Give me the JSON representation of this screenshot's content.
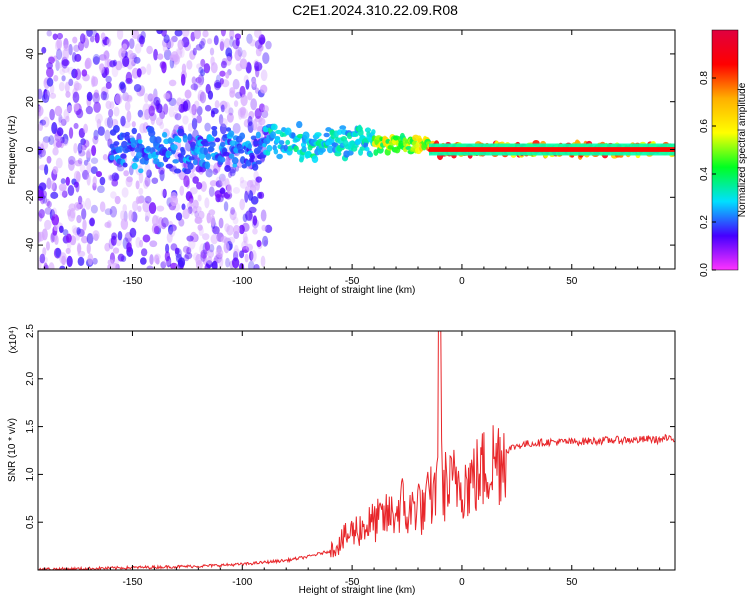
{
  "title": "C2E1.2024.310.22.09.R08",
  "colors": {
    "axis": "#000000",
    "snr_line": "#e8262a",
    "colorbar": [
      "#ff33ff",
      "#4400ff",
      "#00e0ff",
      "#00ff22",
      "#ffff00",
      "#ffb000",
      "#ff0000",
      "#e00040"
    ]
  },
  "chart_data": [
    {
      "type": "heatmap",
      "title": "C2E1.2024.310.22.09.R08",
      "xlabel": "Height of straight line (km)",
      "ylabel": "Frequency (Hz)",
      "xlim": [
        -193,
        97
      ],
      "ylim": [
        -50,
        50
      ],
      "xticks": [
        -150,
        -100,
        -50,
        0,
        50
      ],
      "yticks": [
        -40,
        -20,
        0,
        20,
        40
      ],
      "xtick_labels": [
        "-150",
        "-100",
        "-50",
        "0",
        "50"
      ],
      "ytick_labels": [
        "-40",
        "-20",
        "0",
        "20",
        "40"
      ],
      "colorbar": {
        "label": "Normalized spectral amplitude",
        "range": [
          0,
          1
        ],
        "ticks": [
          0.0,
          0.2,
          0.4,
          0.6,
          0.8
        ],
        "tick_labels": [
          "0.0",
          "0.2",
          "0.4",
          "0.6",
          "0.8"
        ]
      },
      "regions": [
        {
          "x_range": [
            -193,
            -88
          ],
          "description": "diffuse low-amplitude noise across all frequencies",
          "amplitude": 0.1
        },
        {
          "x_range": [
            -160,
            -90
          ],
          "freq_center": 0,
          "freq_halfwidth": 10,
          "amplitude": 0.25
        },
        {
          "x_range": [
            -90,
            -40
          ],
          "freq_center": 3,
          "freq_halfwidth": 8,
          "amplitude": 0.35
        },
        {
          "x_range": [
            -40,
            -15
          ],
          "freq_center": 2,
          "freq_halfwidth": 4,
          "amplitude": 0.6
        },
        {
          "x_range": [
            -15,
            97
          ],
          "freq_center": 0,
          "freq_halfwidth": 3,
          "amplitude": 0.85
        }
      ]
    },
    {
      "type": "line",
      "xlabel": "Height of straight line (km)",
      "ylabel": "SNR (10 * v/v)",
      "y_multiplier_label": "(x10⁴)",
      "xlim": [
        -193,
        97
      ],
      "ylim": [
        0,
        2.5
      ],
      "xticks": [
        -150,
        -100,
        -50,
        0,
        50
      ],
      "yticks": [
        0.5,
        1.0,
        1.5,
        2.0,
        2.5
      ],
      "xtick_labels": [
        "-150",
        "-100",
        "-50",
        "0",
        "50"
      ],
      "ytick_labels": [
        "0.5",
        "1.0",
        "1.5",
        "2.0",
        "2.5"
      ],
      "series": [
        {
          "x": [
            -193,
            -180,
            -160,
            -140,
            -120,
            -100,
            -90,
            -80,
            -70,
            -60,
            -55,
            -50,
            -45,
            -40,
            -35,
            -30,
            -27,
            -25,
            -22,
            -20,
            -18,
            -15,
            -12,
            -10,
            -9,
            -8,
            -6,
            -4,
            -2,
            0,
            2,
            5,
            8,
            10,
            12,
            15,
            20,
            25,
            30,
            35,
            40,
            50,
            60,
            70,
            80,
            85,
            90,
            93,
            95,
            97
          ],
          "values": [
            0.01,
            0.01,
            0.02,
            0.03,
            0.04,
            0.06,
            0.08,
            0.1,
            0.14,
            0.2,
            0.3,
            0.4,
            0.45,
            0.5,
            0.55,
            0.6,
            0.7,
            0.55,
            0.65,
            0.75,
            0.6,
            0.75,
            0.8,
            2.5,
            0.8,
            0.9,
            0.85,
            0.9,
            0.95,
            0.95,
            0.9,
            0.95,
            1.0,
            1.05,
            1.1,
            1.15,
            1.25,
            1.3,
            1.32,
            1.33,
            1.34,
            1.34,
            1.35,
            1.36,
            1.36,
            1.37,
            1.36,
            1.38,
            1.36,
            1.37
          ]
        }
      ]
    }
  ]
}
